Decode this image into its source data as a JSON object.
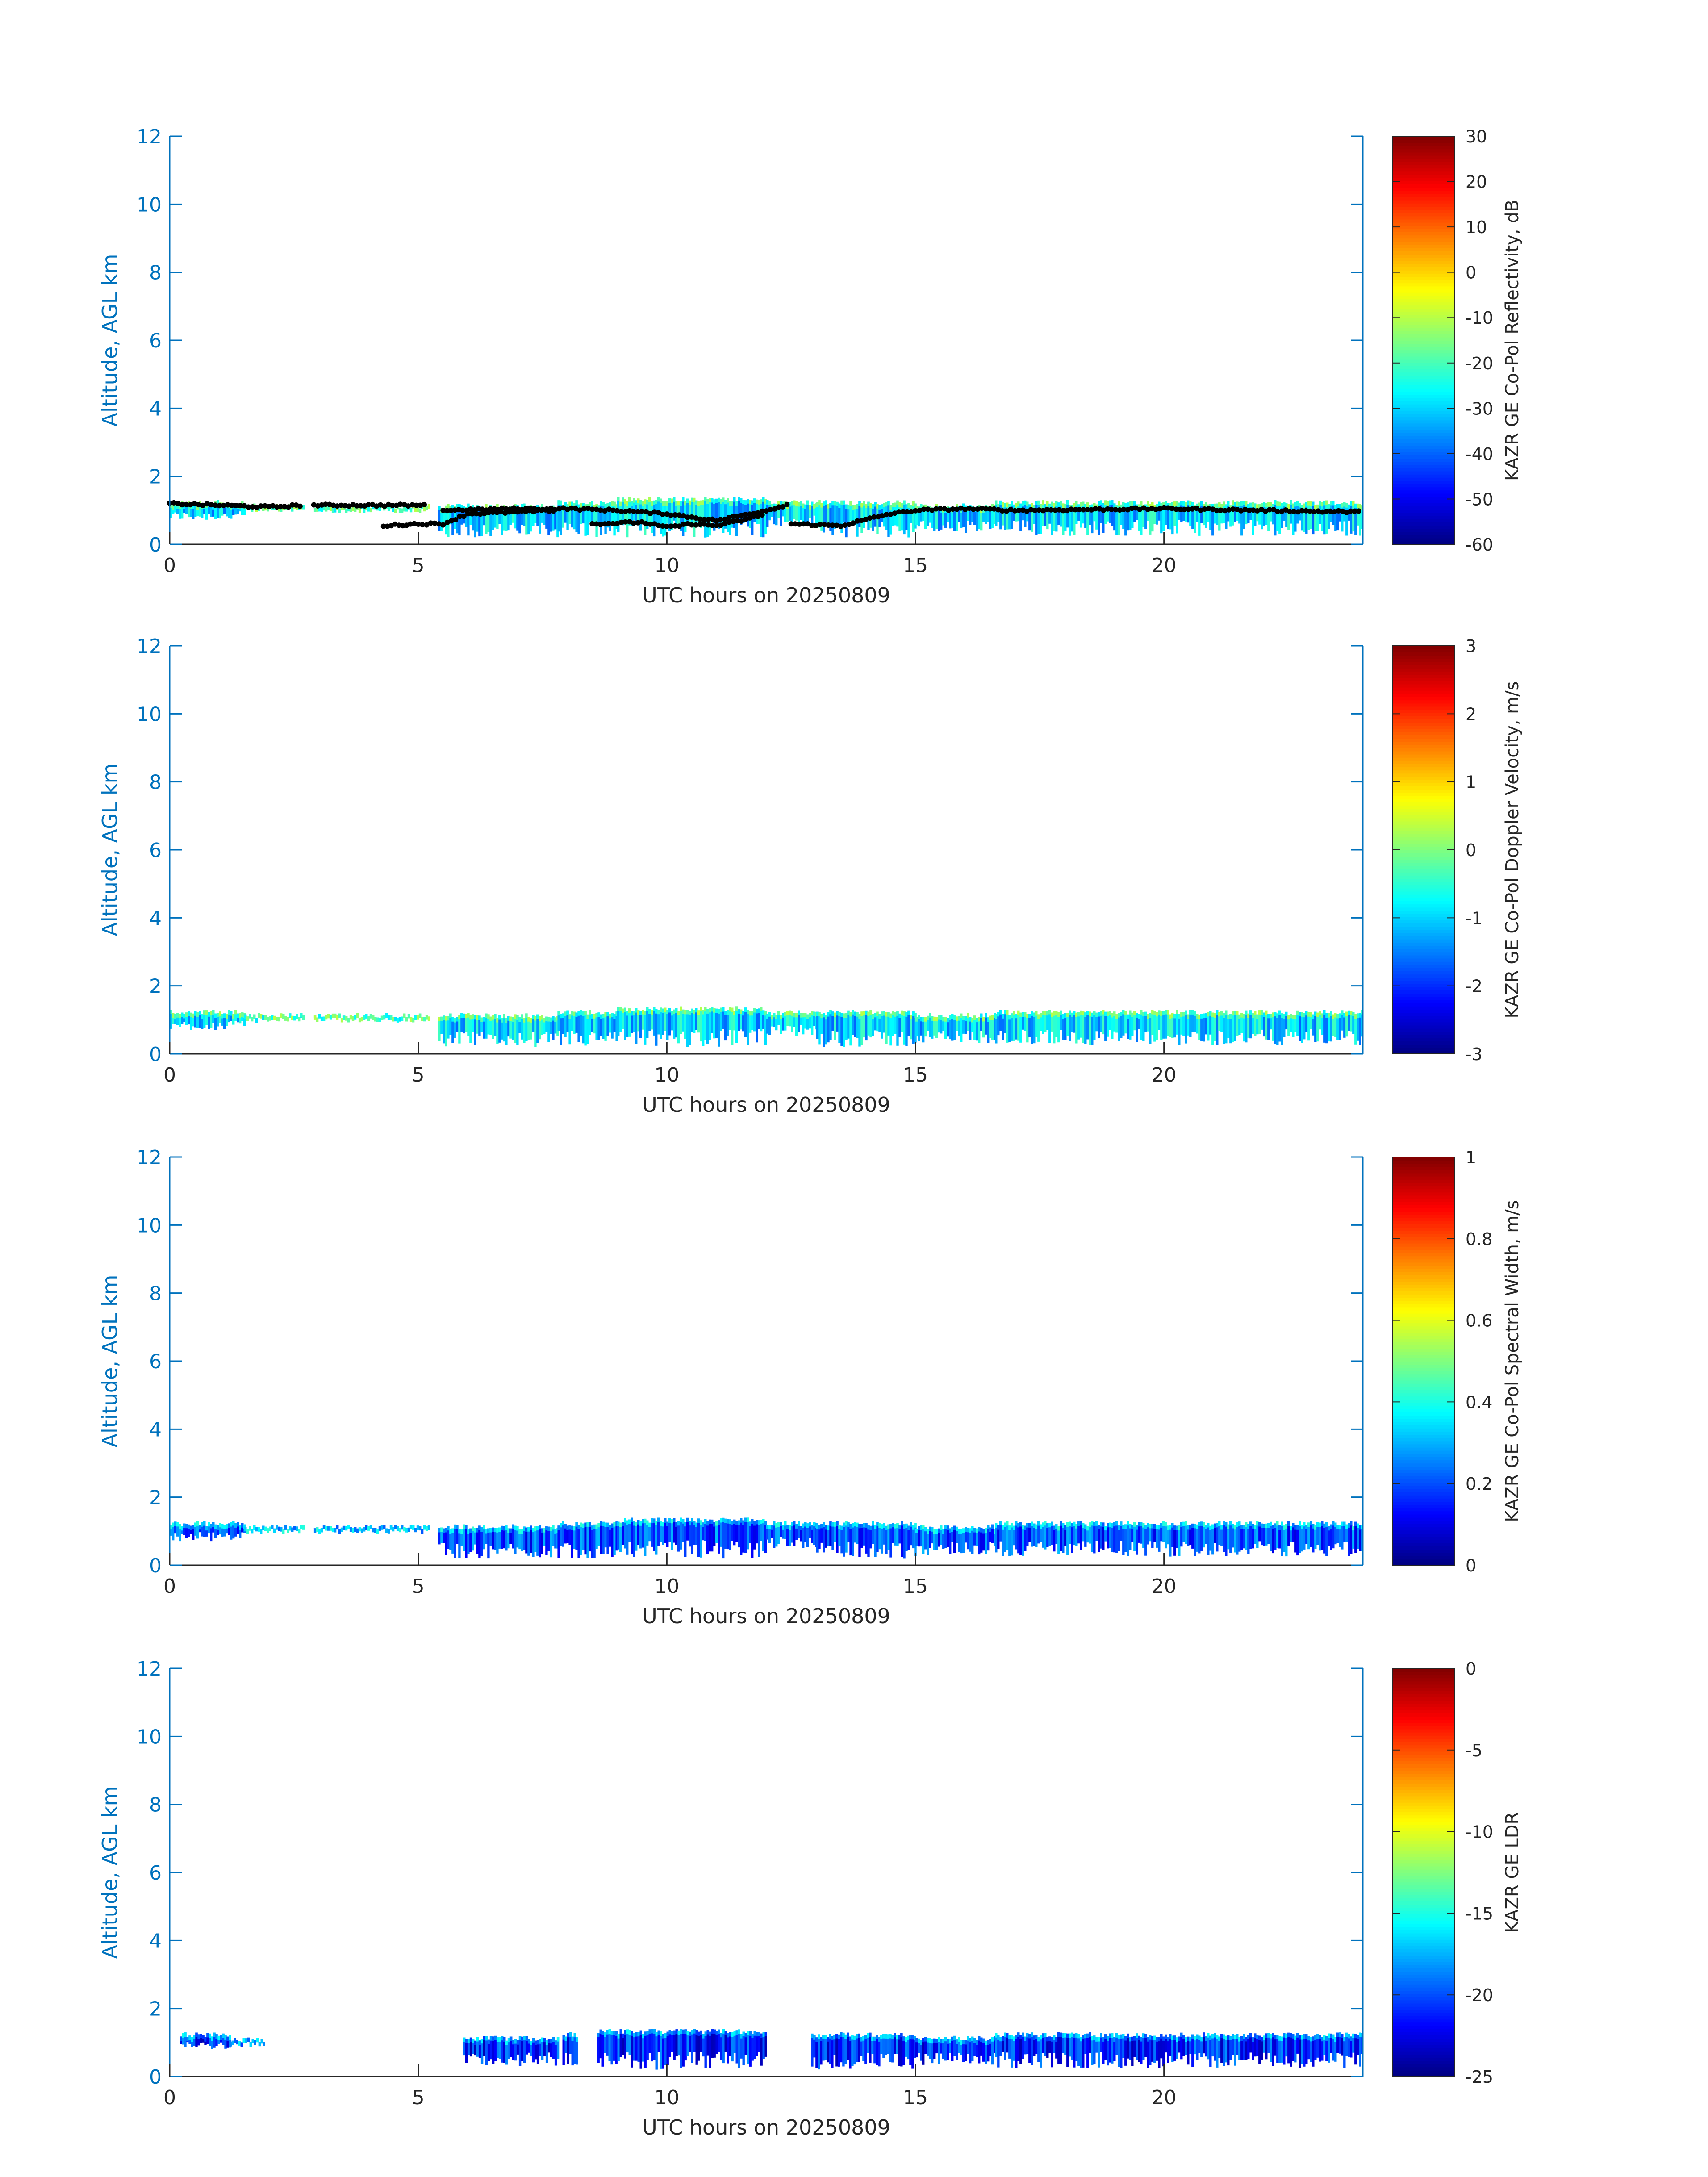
{
  "colors": {
    "axis_blue": "#0072BD",
    "dark_text": "#262626",
    "ceilometer_points": "#000000",
    "jet_colormap": [
      "#00008F",
      "#0000FF",
      "#00FFFF",
      "#FFFF00",
      "#FF0000",
      "#800000"
    ]
  },
  "chart_data": [
    {
      "type": "heatmap",
      "colormap": "jet",
      "xlabel": "UTC hours on 20250809",
      "ylabel": "Altitude, AGL km",
      "colorbar_label": "KAZR GE Co-Pol Reflectivity, dB",
      "xlim": [
        0,
        24
      ],
      "ylim": [
        0,
        12
      ],
      "x_ticks": [
        "0",
        "5",
        "10",
        "15",
        "20"
      ],
      "y_ticks": [
        "0",
        "2",
        "4",
        "6",
        "8",
        "10",
        "12"
      ],
      "clim": [
        -60,
        30
      ],
      "colorbar_ticks": [
        "-60",
        "-50",
        "-40",
        "-30",
        "-20",
        "-10",
        "0",
        "10",
        "20",
        "30"
      ],
      "typical_value": -30,
      "cloud_segments": [
        {
          "x0": 0.0,
          "x1": 1.5,
          "base": 0.7,
          "top": 1.3
        },
        {
          "x0": 1.5,
          "x1": 2.7,
          "base": 1.05,
          "top": 1.2
        },
        {
          "x0": 2.9,
          "x1": 5.2,
          "base": 1.05,
          "top": 1.2
        },
        {
          "x0": 5.4,
          "x1": 7.8,
          "base": 0.2,
          "top": 1.2
        },
        {
          "x0": 7.8,
          "x1": 9.0,
          "base": 0.2,
          "top": 1.3
        },
        {
          "x0": 9.0,
          "x1": 12.0,
          "base": 0.2,
          "top": 1.4
        },
        {
          "x0": 12.0,
          "x1": 13.0,
          "base": 0.5,
          "top": 1.3
        },
        {
          "x0": 13.0,
          "x1": 15.0,
          "base": 0.2,
          "top": 1.3
        },
        {
          "x0": 15.0,
          "x1": 16.6,
          "base": 0.3,
          "top": 1.2
        },
        {
          "x0": 16.6,
          "x1": 24.0,
          "base": 0.25,
          "top": 1.3
        }
      ],
      "ceilometer_cloud_base": [
        {
          "x": [
            0.0,
            1.0,
            2.0,
            2.7
          ],
          "y": [
            1.2,
            1.15,
            1.1,
            1.15
          ]
        },
        {
          "x": [
            2.9,
            4.0,
            5.2
          ],
          "y": [
            1.15,
            1.15,
            1.15
          ]
        },
        {
          "x": [
            4.3,
            5.0,
            5.5,
            6.0,
            7.0,
            7.8
          ],
          "y": [
            0.55,
            0.6,
            0.6,
            0.9,
            0.95,
            1.0
          ]
        },
        {
          "x": [
            5.5,
            7.0,
            8.0,
            9.0,
            10.0,
            11.0,
            12.0,
            12.5
          ],
          "y": [
            1.0,
            1.05,
            1.05,
            1.0,
            0.9,
            0.7,
            1.0,
            1.2
          ]
        },
        {
          "x": [
            8.5,
            9.5,
            10.0,
            10.5,
            11.0,
            11.5,
            12.0
          ],
          "y": [
            0.6,
            0.65,
            0.5,
            0.6,
            0.55,
            0.7,
            0.9
          ]
        },
        {
          "x": [
            12.5,
            13.5,
            14.5,
            15.0,
            16.0,
            17.0,
            20.0,
            24.0
          ],
          "y": [
            0.6,
            0.55,
            0.9,
            1.0,
            1.05,
            1.0,
            1.05,
            0.95
          ]
        }
      ]
    },
    {
      "type": "heatmap",
      "colormap": "jet",
      "xlabel": "UTC hours on 20250809",
      "ylabel": "Altitude, AGL km",
      "colorbar_label": "KAZR GE Co-Pol Doppler Velocity, m/s",
      "xlim": [
        0,
        24
      ],
      "ylim": [
        0,
        12
      ],
      "x_ticks": [
        "0",
        "5",
        "10",
        "15",
        "20"
      ],
      "y_ticks": [
        "0",
        "2",
        "4",
        "6",
        "8",
        "10",
        "12"
      ],
      "clim": [
        -3,
        3
      ],
      "colorbar_ticks": [
        "-3",
        "-2",
        "-1",
        "0",
        "1",
        "2",
        "3"
      ],
      "typical_value": -1,
      "cloud_segments": [
        {
          "x0": 0.0,
          "x1": 1.5,
          "base": 0.7,
          "top": 1.3
        },
        {
          "x0": 1.5,
          "x1": 2.7,
          "base": 1.05,
          "top": 1.2
        },
        {
          "x0": 2.9,
          "x1": 5.2,
          "base": 1.05,
          "top": 1.2
        },
        {
          "x0": 5.4,
          "x1": 7.8,
          "base": 0.2,
          "top": 1.2
        },
        {
          "x0": 7.8,
          "x1": 9.0,
          "base": 0.2,
          "top": 1.3
        },
        {
          "x0": 9.0,
          "x1": 12.0,
          "base": 0.2,
          "top": 1.4
        },
        {
          "x0": 12.0,
          "x1": 13.0,
          "base": 0.5,
          "top": 1.3
        },
        {
          "x0": 13.0,
          "x1": 15.0,
          "base": 0.2,
          "top": 1.3
        },
        {
          "x0": 15.0,
          "x1": 16.6,
          "base": 0.3,
          "top": 1.2
        },
        {
          "x0": 16.6,
          "x1": 24.0,
          "base": 0.25,
          "top": 1.3
        }
      ]
    },
    {
      "type": "heatmap",
      "colormap": "jet",
      "xlabel": "UTC hours on 20250809",
      "ylabel": "Altitude, AGL km",
      "colorbar_label": "KAZR GE Co-Pol Spectral Width, m/s",
      "xlim": [
        0,
        24
      ],
      "ylim": [
        0,
        12
      ],
      "x_ticks": [
        "0",
        "5",
        "10",
        "15",
        "20"
      ],
      "y_ticks": [
        "0",
        "2",
        "4",
        "6",
        "8",
        "10",
        "12"
      ],
      "clim": [
        0,
        1
      ],
      "colorbar_ticks": [
        "0",
        "0.2",
        "0.4",
        "0.6",
        "0.8",
        "1"
      ],
      "typical_value": 0.2,
      "cloud_segments": [
        {
          "x0": 0.0,
          "x1": 1.5,
          "base": 0.7,
          "top": 1.3
        },
        {
          "x0": 1.5,
          "x1": 2.7,
          "base": 1.05,
          "top": 1.2
        },
        {
          "x0": 2.9,
          "x1": 5.2,
          "base": 1.05,
          "top": 1.2
        },
        {
          "x0": 5.4,
          "x1": 7.8,
          "base": 0.2,
          "top": 1.2
        },
        {
          "x0": 7.8,
          "x1": 9.0,
          "base": 0.2,
          "top": 1.3
        },
        {
          "x0": 9.0,
          "x1": 12.0,
          "base": 0.2,
          "top": 1.4
        },
        {
          "x0": 12.0,
          "x1": 13.0,
          "base": 0.5,
          "top": 1.3
        },
        {
          "x0": 13.0,
          "x1": 15.0,
          "base": 0.2,
          "top": 1.3
        },
        {
          "x0": 15.0,
          "x1": 16.6,
          "base": 0.3,
          "top": 1.2
        },
        {
          "x0": 16.6,
          "x1": 24.0,
          "base": 0.25,
          "top": 1.3
        }
      ]
    },
    {
      "type": "heatmap",
      "colormap": "jet",
      "xlabel": "UTC hours on 20250809",
      "ylabel": "Altitude, AGL km",
      "colorbar_label": "KAZR GE LDR",
      "xlim": [
        0,
        24
      ],
      "ylim": [
        0,
        12
      ],
      "x_ticks": [
        "0",
        "5",
        "10",
        "15",
        "20"
      ],
      "y_ticks": [
        "0",
        "2",
        "4",
        "6",
        "8",
        "10",
        "12"
      ],
      "clim": [
        -25,
        0
      ],
      "colorbar_ticks": [
        "-25",
        "-20",
        "-15",
        "-10",
        "-5",
        "0"
      ],
      "typical_value": -21,
      "cloud_segments": [
        {
          "x0": 0.2,
          "x1": 1.2,
          "base": 0.8,
          "top": 1.3
        },
        {
          "x0": 1.2,
          "x1": 1.9,
          "base": 1.0,
          "top": 1.15
        },
        {
          "x0": 5.9,
          "x1": 7.8,
          "base": 0.3,
          "top": 1.2
        },
        {
          "x0": 7.9,
          "x1": 8.2,
          "base": 0.2,
          "top": 1.3
        },
        {
          "x0": 8.6,
          "x1": 12.0,
          "base": 0.2,
          "top": 1.4
        },
        {
          "x0": 12.9,
          "x1": 15.0,
          "base": 0.2,
          "top": 1.3
        },
        {
          "x0": 15.0,
          "x1": 16.6,
          "base": 0.3,
          "top": 1.2
        },
        {
          "x0": 16.6,
          "x1": 24.0,
          "base": 0.25,
          "top": 1.3
        }
      ]
    }
  ]
}
